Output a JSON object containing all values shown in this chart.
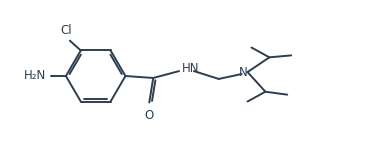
{
  "bg_color": "#ffffff",
  "line_color": "#2c3e50",
  "line_width": 1.4,
  "fig_width": 3.72,
  "fig_height": 1.52,
  "dpi": 100,
  "cl_label": "Cl",
  "nh2_label": "H₂N",
  "nh_label": "HN",
  "o_label": "O",
  "n_label": "N",
  "font_size": 8.5
}
